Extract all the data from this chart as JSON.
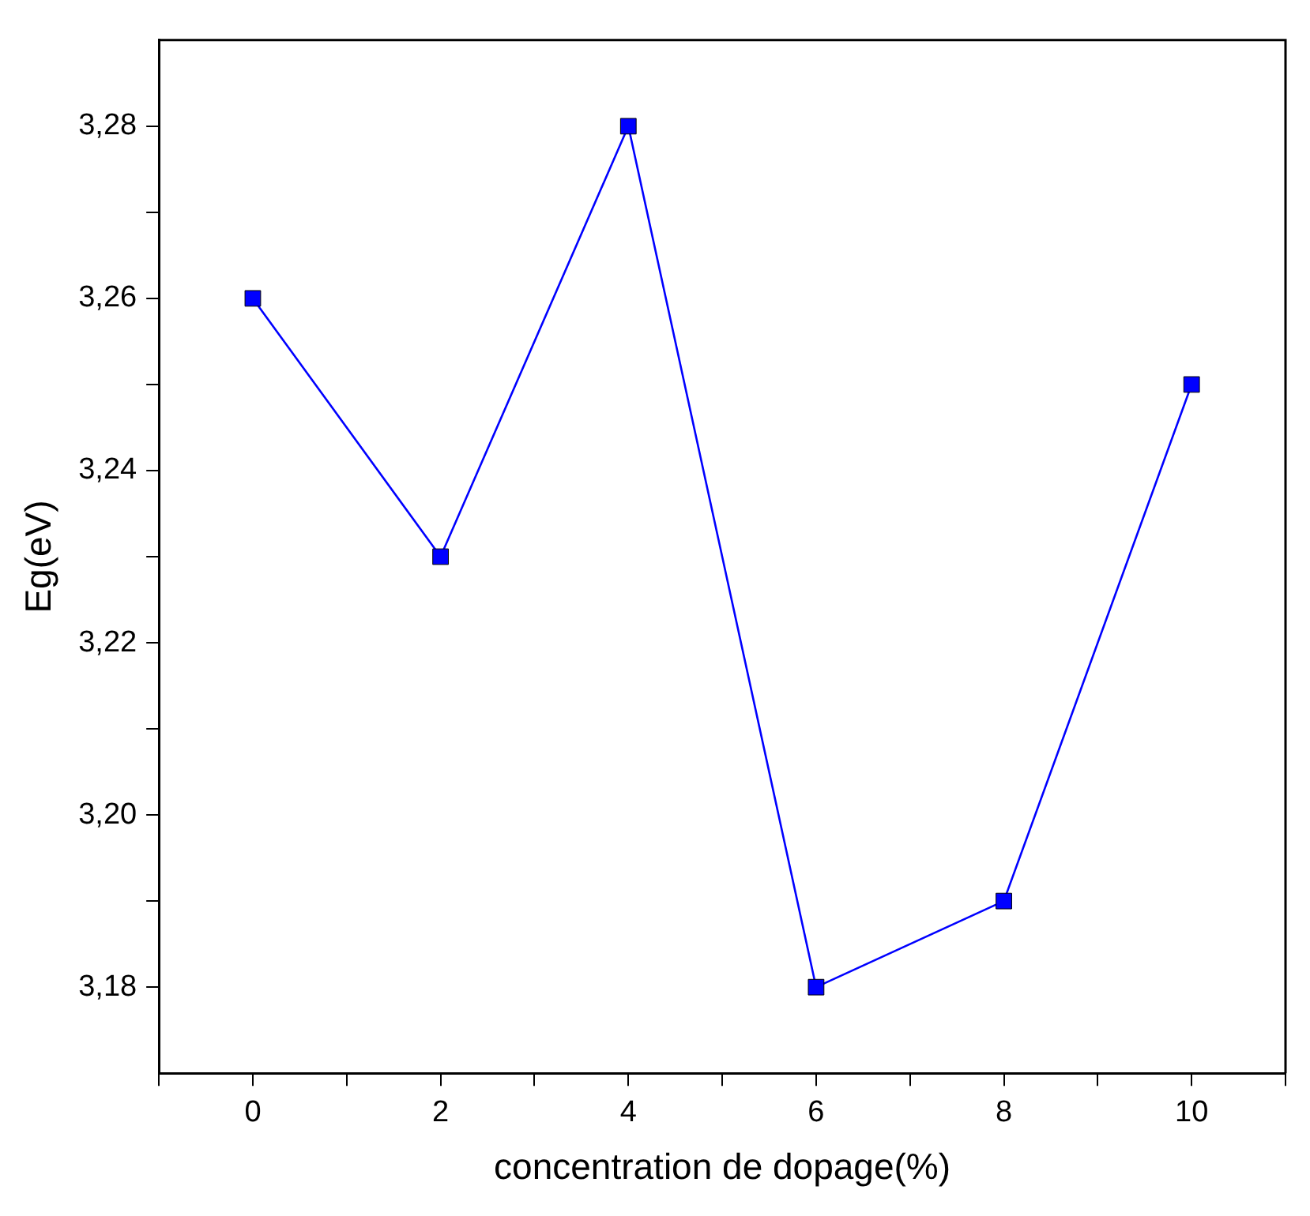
{
  "chart_data": {
    "type": "line",
    "xlabel": "concentration de dopage(%)",
    "ylabel": "Eg(eV)",
    "x": [
      0,
      2,
      4,
      6,
      8,
      10
    ],
    "series": [
      {
        "color": "#0000ff",
        "values": [
          3.26,
          3.23,
          3.28,
          3.18,
          3.19,
          3.25
        ]
      }
    ],
    "xlim": [
      -1,
      11
    ],
    "xticks": [
      {
        "value": -1,
        "label": null
      },
      0,
      {
        "value": 1,
        "label": null
      },
      2,
      {
        "value": 3,
        "label": null
      },
      4,
      {
        "value": 5,
        "label": null
      },
      6,
      {
        "value": 7,
        "label": null
      },
      8,
      {
        "value": 9,
        "label": null
      },
      10,
      {
        "value": 11,
        "label": null
      }
    ],
    "ylim": [
      3.17,
      3.29
    ],
    "yticks": [
      {
        "value": 3.18,
        "label": "3,18"
      },
      {
        "value": 3.19,
        "label": null
      },
      {
        "value": 3.2,
        "label": "3,20"
      },
      {
        "value": 3.21,
        "label": null
      },
      {
        "value": 3.22,
        "label": "3,22"
      },
      {
        "value": 3.23,
        "label": null
      },
      {
        "value": 3.24,
        "label": "3,24"
      },
      {
        "value": 3.25,
        "label": null
      },
      {
        "value": 3.26,
        "label": "3,26"
      },
      {
        "value": 3.27,
        "label": null
      },
      {
        "value": 3.28,
        "label": "3,28"
      }
    ],
    "grid": false,
    "legend": false,
    "marker": "square",
    "line_style": "solid"
  }
}
